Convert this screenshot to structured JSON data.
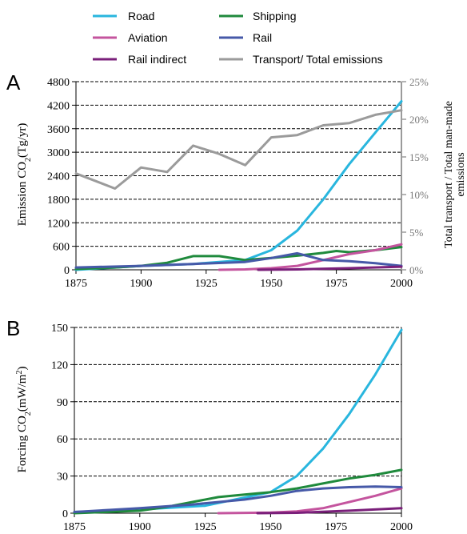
{
  "legend": [
    {
      "label": "Road",
      "color": "#29b6de"
    },
    {
      "label": "Shipping",
      "color": "#1f8a3c"
    },
    {
      "label": "Aviation",
      "color": "#c4549e"
    },
    {
      "label": "Rail",
      "color": "#4659a8"
    },
    {
      "label": "Rail indirect",
      "color": "#7a1f7a"
    },
    {
      "label": "Transport/ Total emissions",
      "color": "#9b9b9b"
    }
  ],
  "chart_data": [
    {
      "panel_label": "A",
      "type": "line",
      "xlim": [
        1875,
        2000
      ],
      "ylim": [
        0,
        4800
      ],
      "y2lim": [
        0,
        25
      ],
      "x_ticks": [
        "1875",
        "1900",
        "1925",
        "1950",
        "1975",
        "2000"
      ],
      "y_ticks": [
        "0",
        "600",
        "1200",
        "1800",
        "2400",
        "3000",
        "3600",
        "4200",
        "4800"
      ],
      "y2_ticks": [
        "0%",
        "5%",
        "10%",
        "15%",
        "20%",
        "25%"
      ],
      "ylabel_main": "Emission CO",
      "ylabel_sub": "2",
      "ylabel_tail": "(Tg/yr)",
      "y2label_line1": "Total transport / Total man-made",
      "y2label_line2": "emissions",
      "grid": "horizontal dashed",
      "series": [
        {
          "name": "Road",
          "color": "#29b6de",
          "axis": "left",
          "x": [
            1875,
            1900,
            1920,
            1930,
            1940,
            1950,
            1960,
            1970,
            1980,
            1990,
            2000
          ],
          "y": [
            0,
            100,
            150,
            200,
            250,
            500,
            1000,
            1800,
            2700,
            3500,
            4300
          ]
        },
        {
          "name": "Shipping",
          "color": "#1f8a3c",
          "axis": "left",
          "x": [
            1875,
            1890,
            1900,
            1910,
            1920,
            1930,
            1940,
            1950,
            1960,
            1970,
            1975,
            1980,
            1990,
            2000
          ],
          "y": [
            20,
            60,
            100,
            180,
            350,
            350,
            250,
            300,
            360,
            430,
            480,
            450,
            500,
            580
          ]
        },
        {
          "name": "Aviation",
          "color": "#c4549e",
          "axis": "left",
          "x": [
            1930,
            1940,
            1950,
            1960,
            1970,
            1980,
            1990,
            2000
          ],
          "y": [
            0,
            10,
            40,
            100,
            250,
            400,
            500,
            650
          ]
        },
        {
          "name": "Rail",
          "color": "#4659a8",
          "axis": "left",
          "x": [
            1875,
            1900,
            1920,
            1940,
            1950,
            1960,
            1970,
            1980,
            1990,
            2000
          ],
          "y": [
            60,
            100,
            150,
            200,
            300,
            420,
            250,
            220,
            170,
            100
          ]
        },
        {
          "name": "Rail indirect",
          "color": "#7a1f7a",
          "axis": "left",
          "x": [
            1945,
            1960,
            1980,
            2000
          ],
          "y": [
            0,
            10,
            40,
            80
          ]
        },
        {
          "name": "Transport/ Total emissions",
          "color": "#9b9b9b",
          "axis": "right",
          "x": [
            1875,
            1890,
            1900,
            1910,
            1920,
            1930,
            1940,
            1950,
            1960,
            1970,
            1980,
            1990,
            2000
          ],
          "y": [
            12.8,
            10.8,
            13.6,
            13.0,
            16.5,
            15.4,
            13.9,
            17.6,
            17.9,
            19.2,
            19.5,
            20.6,
            21.2
          ]
        }
      ]
    },
    {
      "panel_label": "B",
      "type": "line",
      "xlim": [
        1875,
        2000
      ],
      "ylim": [
        0,
        150
      ],
      "x_ticks": [
        "1875",
        "1900",
        "1925",
        "1950",
        "1975",
        "2000"
      ],
      "y_ticks": [
        "0",
        "30",
        "60",
        "90",
        "120",
        "150"
      ],
      "ylabel_main": "Forcing CO",
      "ylabel_sub": "2",
      "ylabel_mid": "(mW/m",
      "ylabel_sup": "2",
      "ylabel_tail": ")",
      "grid": "horizontal dashed",
      "series": [
        {
          "name": "Road",
          "color": "#29b6de",
          "x": [
            1875,
            1900,
            1925,
            1950,
            1960,
            1970,
            1980,
            1990,
            2000
          ],
          "y": [
            1,
            3,
            6,
            17,
            30,
            52,
            80,
            112,
            148
          ]
        },
        {
          "name": "Shipping",
          "color": "#1f8a3c",
          "x": [
            1875,
            1900,
            1910,
            1920,
            1930,
            1940,
            1950,
            1960,
            1970,
            1980,
            1990,
            2000
          ],
          "y": [
            0,
            2,
            5,
            9,
            13,
            15,
            17,
            20,
            24,
            28,
            31,
            35
          ]
        },
        {
          "name": "Aviation",
          "color": "#c4549e",
          "x": [
            1930,
            1950,
            1960,
            1970,
            1980,
            1990,
            2000
          ],
          "y": [
            0,
            0.5,
            1.5,
            4,
            9,
            14,
            20
          ]
        },
        {
          "name": "Rail",
          "color": "#4659a8",
          "x": [
            1875,
            1900,
            1920,
            1940,
            1950,
            1960,
            1970,
            1980,
            1990,
            2000
          ],
          "y": [
            1,
            4,
            7,
            11,
            14,
            18,
            20,
            21,
            21.5,
            21
          ]
        },
        {
          "name": "Rail indirect",
          "color": "#7a1f7a",
          "x": [
            1945,
            1960,
            1980,
            2000
          ],
          "y": [
            0,
            0.3,
            2,
            4
          ]
        }
      ]
    }
  ]
}
